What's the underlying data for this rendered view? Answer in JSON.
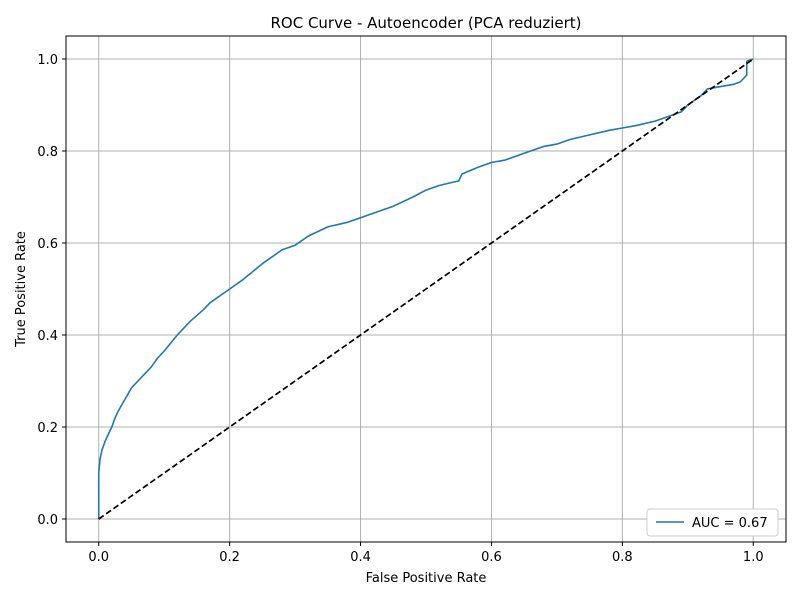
{
  "chart_data": {
    "type": "line",
    "title": "ROC Curve - Autoencoder (PCA reduziert)",
    "xlabel": "False Positive Rate",
    "ylabel": "True Positive Rate",
    "xlim": [
      -0.05,
      1.05
    ],
    "ylim": [
      -0.05,
      1.05
    ],
    "x_ticks": [
      0.0,
      0.2,
      0.4,
      0.6,
      0.8,
      1.0
    ],
    "y_ticks": [
      0.0,
      0.2,
      0.4,
      0.6,
      0.8,
      1.0
    ],
    "x_tick_labels": [
      "0.0",
      "0.2",
      "0.4",
      "0.6",
      "0.8",
      "1.0"
    ],
    "y_tick_labels": [
      "0.0",
      "0.2",
      "0.4",
      "0.6",
      "0.8",
      "1.0"
    ],
    "grid": true,
    "legend_position": "bottom-right",
    "series": [
      {
        "name": "AUC = 0.67",
        "color": "#1f77b4",
        "style": "solid",
        "x": [
          0.0,
          0.0,
          0.0,
          0.002,
          0.005,
          0.01,
          0.015,
          0.02,
          0.025,
          0.03,
          0.04,
          0.05,
          0.06,
          0.07,
          0.08,
          0.09,
          0.1,
          0.12,
          0.14,
          0.16,
          0.17,
          0.18,
          0.2,
          0.22,
          0.25,
          0.28,
          0.3,
          0.32,
          0.35,
          0.38,
          0.4,
          0.42,
          0.45,
          0.48,
          0.5,
          0.52,
          0.55,
          0.555,
          0.58,
          0.6,
          0.62,
          0.65,
          0.68,
          0.7,
          0.72,
          0.75,
          0.78,
          0.8,
          0.82,
          0.85,
          0.88,
          0.89,
          0.9,
          0.91,
          0.92,
          0.93,
          0.95,
          0.97,
          0.98,
          0.99,
          0.99,
          1.0
        ],
        "y": [
          0.0,
          0.06,
          0.1,
          0.13,
          0.15,
          0.17,
          0.185,
          0.2,
          0.22,
          0.235,
          0.26,
          0.285,
          0.3,
          0.315,
          0.33,
          0.35,
          0.365,
          0.4,
          0.43,
          0.455,
          0.47,
          0.48,
          0.5,
          0.52,
          0.555,
          0.585,
          0.595,
          0.615,
          0.635,
          0.645,
          0.655,
          0.665,
          0.68,
          0.7,
          0.715,
          0.725,
          0.735,
          0.75,
          0.765,
          0.775,
          0.78,
          0.795,
          0.81,
          0.815,
          0.825,
          0.835,
          0.845,
          0.85,
          0.855,
          0.865,
          0.88,
          0.885,
          0.9,
          0.91,
          0.92,
          0.935,
          0.94,
          0.945,
          0.95,
          0.965,
          0.995,
          1.0
        ]
      },
      {
        "name": "",
        "color": "#000000",
        "style": "dashed",
        "x": [
          0.0,
          1.0
        ],
        "y": [
          0.0,
          1.0
        ]
      }
    ]
  }
}
